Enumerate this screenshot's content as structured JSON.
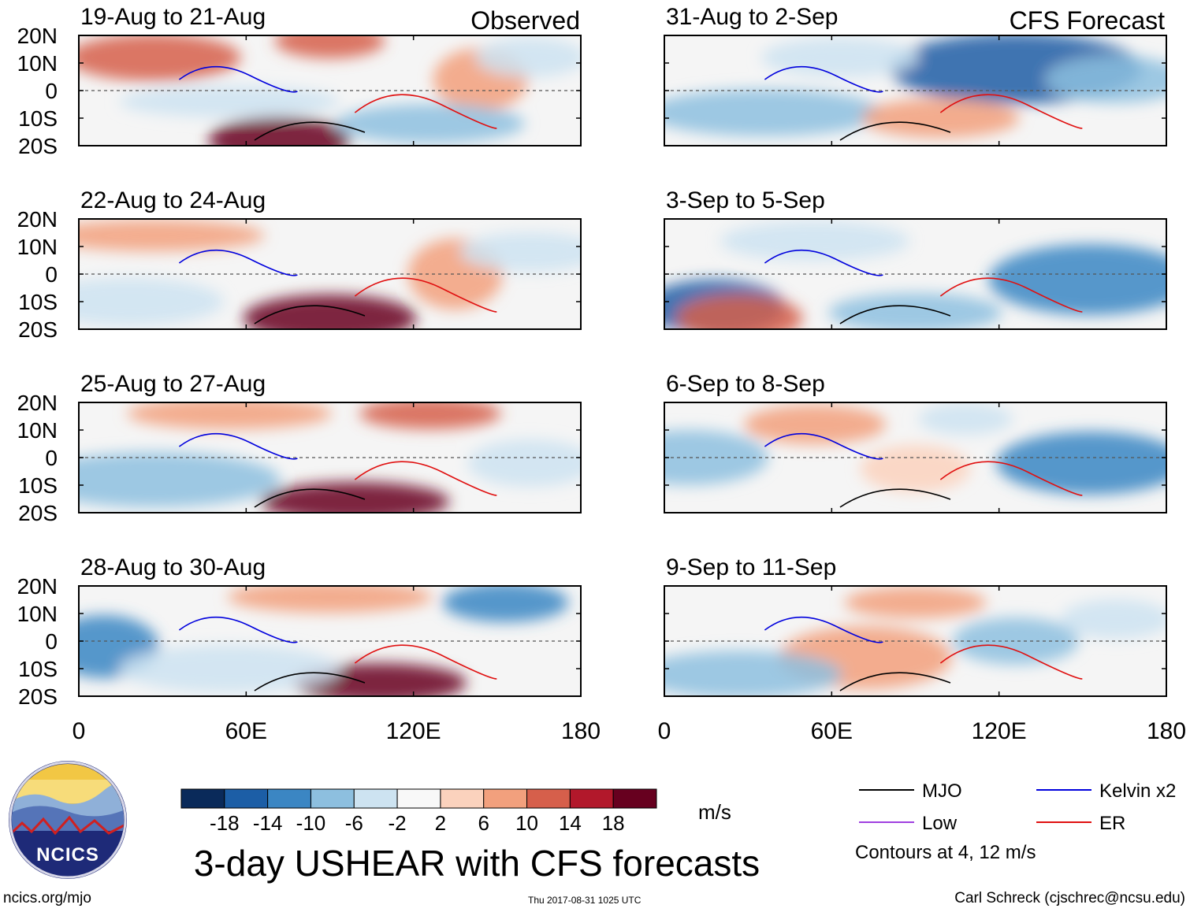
{
  "title": "3-day USHEAR with CFS forecasts",
  "footer": {
    "site": "ncics.org/mjo",
    "timestamp": "Thu 2017-08-31 1025 UTC",
    "author": "Carl Schreck (cjschrec@ncsu.edu)",
    "logo_text": "NCICS"
  },
  "headers": {
    "left": "Observed",
    "right": "CFS Forecast"
  },
  "chart_data": {
    "type": "heatmap",
    "title": "3-day USHEAR with CFS forecasts",
    "units": "m/s",
    "x_ticks": [
      "0",
      "60E",
      "120E",
      "180"
    ],
    "y_ticks": [
      "20N",
      "10N",
      "0",
      "10S",
      "20S"
    ],
    "xlim": [
      0,
      180
    ],
    "ylim": [
      -20,
      20
    ],
    "colorbar": {
      "labels": [
        "-18",
        "-14",
        "-10",
        "-6",
        "-2",
        "2",
        "6",
        "10",
        "14",
        "18"
      ],
      "colors": [
        "#0a2a5a",
        "#1c5ea6",
        "#3b86c3",
        "#8dbfdf",
        "#cde3f1",
        "#f8f8f8",
        "#fbd2bd",
        "#f2a07d",
        "#d65f4b",
        "#b2182b",
        "#67001f"
      ]
    },
    "legend": {
      "items": [
        {
          "label": "MJO",
          "color": "#000000"
        },
        {
          "label": "Kelvin x2",
          "color": "#0000dd"
        },
        {
          "label": "Low",
          "color": "#a040e0"
        },
        {
          "label": "ER",
          "color": "#e01010"
        }
      ],
      "note": "Contours at 4, 12 m/s"
    },
    "panels": [
      {
        "label": "19-Aug to 21-Aug",
        "source": "Observed"
      },
      {
        "label": "31-Aug to 2-Sep",
        "source": "CFS Forecast"
      },
      {
        "label": "22-Aug to 24-Aug",
        "source": "Observed"
      },
      {
        "label": "3-Sep to 5-Sep",
        "source": "CFS Forecast"
      },
      {
        "label": "25-Aug to 27-Aug",
        "source": "Observed"
      },
      {
        "label": "6-Sep to 8-Sep",
        "source": "CFS Forecast"
      },
      {
        "label": "28-Aug to 30-Aug",
        "source": "Observed"
      },
      {
        "label": "9-Sep to 11-Sep",
        "source": "CFS Forecast"
      }
    ]
  }
}
